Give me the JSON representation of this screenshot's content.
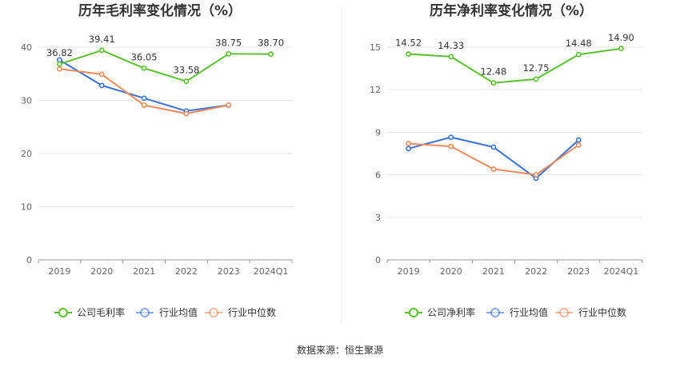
{
  "source_label": "数据来源：恒生聚源",
  "colors": {
    "company": "#5ac12e",
    "industry_avg": "#3b72d8",
    "industry_median": "#f08a5d",
    "grid": "#e6e6e6",
    "axis": "#999999"
  },
  "chart_data": [
    {
      "type": "line",
      "title": "历年毛利率变化情况（%）",
      "categories": [
        "2019",
        "2020",
        "2021",
        "2022",
        "2023",
        "2024Q1"
      ],
      "ylim": [
        0,
        40
      ],
      "yticks": [
        "0",
        "10",
        "20",
        "30",
        "40"
      ],
      "grid": true,
      "legend_position": "bottom",
      "series": [
        {
          "name": "公司毛利率",
          "color_key": "company",
          "values": [
            36.82,
            39.41,
            36.05,
            33.58,
            38.75,
            38.7
          ],
          "labels": [
            "36.82",
            "39.41",
            "36.05",
            "33.58",
            "38.75",
            "38.70"
          ]
        },
        {
          "name": "行业均值",
          "color_key": "industry_avg",
          "values": [
            37.6,
            32.8,
            30.4,
            28.0,
            29.1,
            null
          ]
        },
        {
          "name": "行业中位数",
          "color_key": "industry_median",
          "values": [
            35.9,
            34.9,
            29.1,
            27.5,
            29.1,
            null
          ]
        }
      ]
    },
    {
      "type": "line",
      "title": "历年净利率变化情况（%）",
      "categories": [
        "2019",
        "2020",
        "2021",
        "2022",
        "2023",
        "2024Q1"
      ],
      "ylim": [
        0,
        15
      ],
      "yticks": [
        "0",
        "3",
        "6",
        "9",
        "12",
        "15"
      ],
      "grid": true,
      "legend_position": "bottom",
      "series": [
        {
          "name": "公司净利率",
          "color_key": "company",
          "values": [
            14.52,
            14.33,
            12.48,
            12.75,
            14.48,
            14.9
          ],
          "labels": [
            "14.52",
            "14.33",
            "12.48",
            "12.75",
            "14.48",
            "14.90"
          ]
        },
        {
          "name": "行业均值",
          "color_key": "industry_avg",
          "values": [
            7.85,
            8.65,
            7.95,
            5.75,
            8.45,
            null
          ]
        },
        {
          "name": "行业中位数",
          "color_key": "industry_median",
          "values": [
            8.2,
            8.0,
            6.4,
            6.0,
            8.1,
            null
          ]
        }
      ]
    }
  ]
}
